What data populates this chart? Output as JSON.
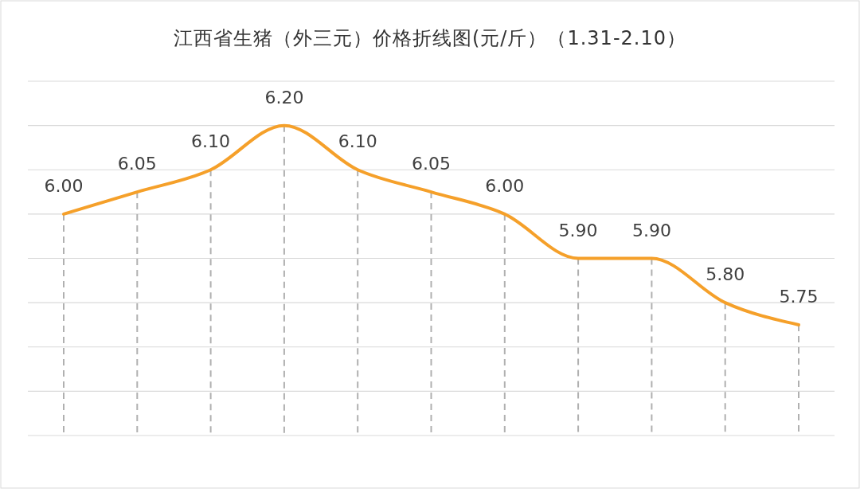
{
  "chart_data": {
    "type": "line",
    "title": "江西省生猪（外三元）价格折线图(元/斤）（1.31-2.10）",
    "categories": [
      null,
      null,
      null,
      null,
      null,
      null,
      null,
      null,
      null,
      null,
      null
    ],
    "series": [
      {
        "color": "#f5a02a",
        "values": [
          6.0,
          6.05,
          6.1,
          6.2,
          6.1,
          6.05,
          6.0,
          5.9,
          5.9,
          5.8,
          5.75
        ],
        "value_labels": [
          "6.00",
          "6.05",
          "6.10",
          "6.20",
          "6.10",
          "6.05",
          "6.00",
          "5.90",
          "5.90",
          "5.80",
          "5.75"
        ]
      }
    ],
    "ylim": [
      5.5,
      6.3
    ],
    "yticks": [
      5.5,
      5.6,
      5.7,
      5.8,
      5.9,
      6.0,
      6.1,
      6.2,
      6.3
    ],
    "grid": true,
    "tick_labels": false,
    "marker": "none",
    "line_style": "solid"
  }
}
